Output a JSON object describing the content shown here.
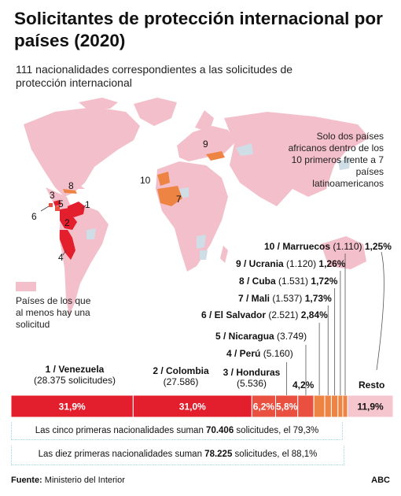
{
  "header": {
    "title": "Solicitantes de protección internacional por países (2020)",
    "subtitle": "111 nacionalidades correspondientes a las solicitudes de protección internacional"
  },
  "note": "Solo dos países africanos dentro de los 10 primeros frente a 7 países latinoamericanos",
  "legend": {
    "label": "Países de los que al menos hay una solicitud"
  },
  "map_labels": [
    "1",
    "2",
    "3",
    "4",
    "5",
    "6",
    "7",
    "8",
    "9",
    "10"
  ],
  "colors": {
    "venezuela_colombia": "#e31e2d",
    "latam_others": "#ea5040",
    "africa_europe": "#ee8444",
    "resto": "#f5c6ce",
    "map_countries": "#f3bfca",
    "map_other": "#cfdde6",
    "guide": "#9fd7e6"
  },
  "chart_data": {
    "type": "bar",
    "orientation": "horizontal-stacked",
    "categories": [
      "Venezuela",
      "Colombia",
      "Honduras",
      "Perú",
      "Nicaragua",
      "El Salvador",
      "Mali",
      "Cuba",
      "Ucrania",
      "Marruecos",
      "Resto"
    ],
    "ranks": [
      "1",
      "2",
      "3",
      "4",
      "5",
      "6",
      "7",
      "8",
      "9",
      "10",
      ""
    ],
    "solicitudes": [
      28375,
      27586,
      5536,
      5160,
      3749,
      2521,
      1537,
      1531,
      1120,
      1110,
      null
    ],
    "values": [
      31.9,
      31.0,
      6.2,
      5.8,
      4.2,
      2.84,
      1.73,
      1.72,
      1.26,
      1.25,
      11.9
    ],
    "labels": {
      "venezuela_name": "1 / Venezuela",
      "venezuela_count": "(28.375 solicitudes)",
      "venezuela_pct": "31,9%",
      "colombia_name": "2 / Colombia",
      "colombia_count": "(27.586)",
      "colombia_pct": "31,0%",
      "honduras_name": "3 / Honduras",
      "honduras_count": "(5.536)",
      "honduras_pct": "6,2%",
      "peru_name": "4 / Perú",
      "peru_count": "(5.160)",
      "peru_pct": "5,8%",
      "nicaragua_name": "5 / Nicaragua",
      "nicaragua_count": "(3.749)",
      "nicaragua_pct": "4,2%",
      "elsalvador_name": "6 / El Salvador",
      "elsalvador_count": "(2.521)",
      "elsalvador_pct": "2,84%",
      "mali_name": "7 / Mali",
      "mali_count": "(1.537)",
      "mali_pct": "1,73%",
      "cuba_name": "8 / Cuba",
      "cuba_count": "(1.531)",
      "cuba_pct": "1,72%",
      "ucrania_name": "9 / Ucrania",
      "ucrania_count": "(1.120)",
      "ucrania_pct": "1,26%",
      "marruecos_name": "10 / Marruecos",
      "marruecos_count": "(1.110)",
      "marruecos_pct": "1,25%",
      "resto_name": "Resto",
      "resto_pct": "11,9%"
    }
  },
  "summaries": {
    "top5": {
      "prefix": "Las cinco primeras nacionalidades suman ",
      "count": "70.406",
      "middle": " solicitudes",
      "suffix": ", el 79,3%"
    },
    "top10": {
      "prefix": "Las diez primeras nacionalidades suman ",
      "count": "78.225",
      "middle": " solicitudes",
      "suffix": ", el 88,1%"
    }
  },
  "footer": {
    "source_label": "Fuente:",
    "source": " Ministerio del Interior",
    "brand": "ABC"
  }
}
